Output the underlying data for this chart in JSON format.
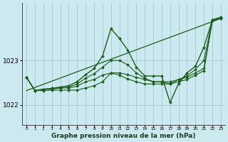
{
  "background_color": "#cde9f0",
  "grid_color": "#a8cdd8",
  "line_color": "#1a5c1a",
  "xlabel": "Graphe pression niveau de la mer (hPa)",
  "yticks": [
    1022,
    1023
  ],
  "xlim": [
    -0.5,
    23.5
  ],
  "ylim": [
    1021.55,
    1024.3
  ],
  "series": [
    [
      1022.62,
      1022.32,
      1022.32,
      1022.33,
      1022.33,
      1022.33,
      1022.33,
      1022.38,
      1022.43,
      1022.52,
      1022.72,
      1022.67,
      1022.58,
      1022.52,
      1022.47,
      1022.47,
      1022.47,
      1022.47,
      1022.52,
      1022.57,
      1022.67,
      1022.77,
      1023.9,
      1023.95
    ],
    [
      1022.62,
      1022.32,
      1022.35,
      1022.35,
      1022.38,
      1022.38,
      1022.42,
      1022.52,
      1022.57,
      1022.67,
      1022.72,
      1022.72,
      1022.68,
      1022.62,
      1022.57,
      1022.52,
      1022.52,
      1022.52,
      1022.57,
      1022.62,
      1022.72,
      1022.82,
      1023.9,
      1023.95
    ],
    [
      1022.62,
      1022.32,
      1022.35,
      1022.37,
      1022.38,
      1022.4,
      1022.47,
      1022.6,
      1022.7,
      1022.85,
      1023.0,
      1023.0,
      1022.9,
      1022.72,
      1022.6,
      1022.52,
      1022.52,
      1022.47,
      1022.57,
      1022.65,
      1022.8,
      1023.0,
      1023.92,
      1023.95
    ],
    [
      1022.62,
      1022.32,
      1022.35,
      1022.37,
      1022.4,
      1022.43,
      1022.52,
      1022.68,
      1022.82,
      1023.1,
      1023.72,
      1023.5,
      1023.23,
      1022.85,
      1022.65,
      1022.65,
      1022.65,
      1022.05,
      1022.48,
      1022.72,
      1022.87,
      1023.3,
      1023.92,
      1023.98
    ]
  ],
  "trend_line": [
    1022.32,
    1023.95
  ]
}
